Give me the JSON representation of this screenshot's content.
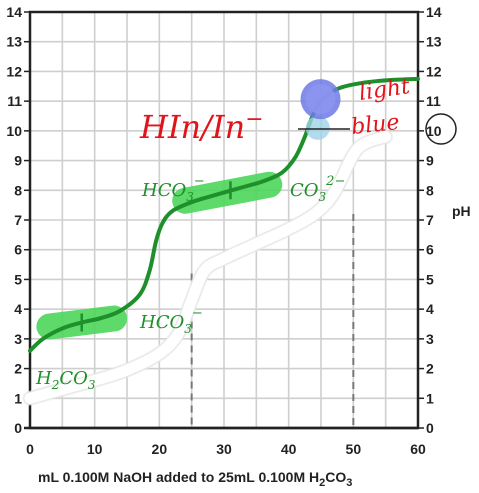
{
  "chart_data": {
    "type": "line",
    "xlabel": "mL 0.100M NaOH added to 25mL 0.100M H",
    "xlabel_sub": "2",
    "xlabel_tail": "CO",
    "xlabel_sub2": "3",
    "ylabel": "pH",
    "xlim": [
      0,
      60
    ],
    "ylim": [
      0,
      14
    ],
    "x_ticks": [
      0,
      10,
      20,
      30,
      40,
      50,
      60
    ],
    "y_ticks": [
      0,
      1,
      2,
      3,
      4,
      5,
      6,
      7,
      8,
      9,
      10,
      11,
      12,
      13,
      14
    ],
    "grid": true,
    "colors": {
      "curve": "#1e8f2a",
      "highlight": "#4cd65a",
      "annotation": "#e0151b",
      "indicator": "#6e7ae6",
      "white_curve": "#ffffff"
    },
    "series": [
      {
        "values_xy": [
          [
            0,
            2.6
          ],
          [
            2,
            3.0
          ],
          [
            5,
            3.35
          ],
          [
            8,
            3.55
          ],
          [
            11,
            3.7
          ],
          [
            14,
            3.95
          ],
          [
            17,
            4.5
          ],
          [
            18.5,
            5.3
          ],
          [
            19.5,
            6.3
          ],
          [
            20.5,
            6.9
          ],
          [
            22,
            7.3
          ],
          [
            25,
            7.6
          ],
          [
            28,
            7.8
          ],
          [
            32,
            8.05
          ],
          [
            36,
            8.3
          ],
          [
            39,
            8.6
          ],
          [
            41,
            9.1
          ],
          [
            42.5,
            9.8
          ],
          [
            43.5,
            10.4
          ],
          [
            44.5,
            10.85
          ],
          [
            46,
            11.2
          ],
          [
            48,
            11.45
          ],
          [
            51,
            11.6
          ],
          [
            55,
            11.7
          ],
          [
            60,
            11.75
          ]
        ]
      },
      {
        "values_xy": [
          [
            0,
            1.0
          ],
          [
            5,
            1.3
          ],
          [
            10,
            1.6
          ],
          [
            15,
            1.95
          ],
          [
            20,
            2.5
          ],
          [
            23,
            3.2
          ],
          [
            25,
            4.3
          ],
          [
            27,
            5.3
          ],
          [
            30,
            5.7
          ],
          [
            35,
            6.2
          ],
          [
            40,
            6.7
          ],
          [
            44,
            7.2
          ],
          [
            47,
            7.9
          ],
          [
            50,
            9.2
          ],
          [
            52,
            9.6
          ],
          [
            55,
            9.8
          ]
        ]
      }
    ],
    "dashed_lines_x": [
      25,
      50
    ],
    "highlights": [
      {
        "x": [
          3,
          13
        ],
        "y": 3.55
      },
      {
        "x": [
          24,
          37
        ],
        "y": 7.85
      }
    ],
    "tick_marks": [
      {
        "x": 8,
        "y": 3.55
      },
      {
        "x": 31,
        "y": 8.0
      }
    ],
    "indicator_dot": {
      "x": 44,
      "y": 11.0
    },
    "indicator_dot_light": {
      "x": 44.5,
      "y": 10.1
    },
    "annotations": {
      "hin_label": "HIn/In",
      "hin_sup": "−",
      "light": "light",
      "blue": "blue",
      "h2co3": "H",
      "h2co3_sub": "2",
      "h2co3_tail": "CO",
      "h2co3_sub2": "3",
      "hco3_a": "HCO",
      "hco3_a_sub": "3",
      "hco3_a_sup": "−",
      "hco3_b": "HCO",
      "hco3_b_sub": "3",
      "hco3_b_sup": "−",
      "co3": "CO",
      "co3_sub": "3",
      "co3_sup": "2−"
    }
  }
}
